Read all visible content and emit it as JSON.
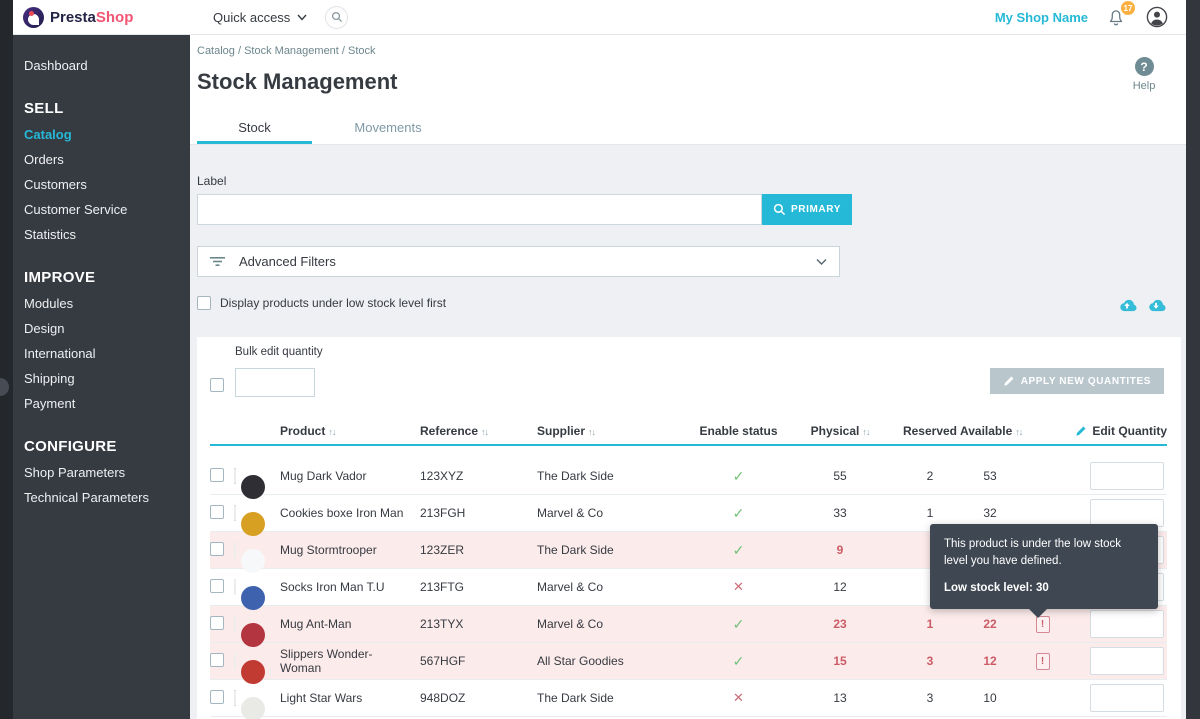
{
  "colors": {
    "accent": "#25b9d7",
    "brand_pink": "#f25474",
    "brand_navy": "#242446",
    "sidebar_bg": "#363a41",
    "success_green": "#72c279",
    "danger_red": "#cb5c66",
    "low_row_bg": "#fcebeb",
    "badge_orange": "#fbb042",
    "disabled_button_bg": "#b9c7cd",
    "tooltip_bg": "#3f4852"
  },
  "header": {
    "brand_presta": "Presta",
    "brand_shop": "Shop",
    "quick_access": "Quick access",
    "shop_name": "My Shop Name",
    "notification_count": "17"
  },
  "sidebar": {
    "dashboard": "Dashboard",
    "sections": [
      {
        "heading": "SELL",
        "items": [
          {
            "label": "Catalog",
            "active": true
          },
          {
            "label": "Orders",
            "active": false
          },
          {
            "label": "Customers",
            "active": false
          },
          {
            "label": "Customer Service",
            "active": false
          },
          {
            "label": "Statistics",
            "active": false
          }
        ]
      },
      {
        "heading": "IMPROVE",
        "items": [
          {
            "label": "Modules",
            "active": false
          },
          {
            "label": "Design",
            "active": false
          },
          {
            "label": "International",
            "active": false
          },
          {
            "label": "Shipping",
            "active": false
          },
          {
            "label": "Payment",
            "active": false
          }
        ]
      },
      {
        "heading": "CONFIGURE",
        "items": [
          {
            "label": "Shop Parameters",
            "active": false
          },
          {
            "label": "Technical Parameters",
            "active": false
          }
        ]
      }
    ]
  },
  "page": {
    "breadcrumb": "Catalog / Stock Management / Stock",
    "title": "Stock Management",
    "help_label": "Help",
    "help_glyph": "?",
    "tabs": [
      {
        "label": "Stock",
        "active": true
      },
      {
        "label": "Movements",
        "active": false
      }
    ]
  },
  "filters": {
    "label_label": "Label",
    "search_value": "",
    "search_button": "PRIMARY",
    "advanced_filters": "Advanced Filters",
    "low_stock_checkbox_label": "Display products under low stock level first"
  },
  "bulk": {
    "label": "Bulk edit quantity",
    "value": "",
    "apply_button": "APPLY NEW QUANTITES"
  },
  "table": {
    "columns": {
      "product": "Product",
      "reference": "Reference",
      "supplier": "Supplier",
      "enable_status": "Enable status",
      "physical": "Physical",
      "reserved": "Reserved",
      "available": "Available",
      "edit_quantity": "Edit Quantity"
    },
    "status_icons": {
      "enabled": "✓",
      "disabled": "✕"
    },
    "warn_glyph": "!",
    "rows": [
      {
        "product": "Mug Dark Vador",
        "reference": "123XYZ",
        "supplier": "The Dark Side",
        "enabled": true,
        "physical": "55",
        "reserved": "2",
        "available": "53",
        "low": false,
        "warn": false,
        "edit_value": "",
        "thumb": {
          "bg": "#17171a",
          "fg": "#2e2e34"
        }
      },
      {
        "product": "Cookies boxe Iron Man",
        "reference": "213FGH",
        "supplier": "Marvel & Co",
        "enabled": true,
        "physical": "33",
        "reserved": "1",
        "available": "32",
        "low": false,
        "warn": false,
        "edit_value": "",
        "thumb": {
          "bg": "#b3372e",
          "fg": "#d8a023"
        }
      },
      {
        "product": "Mug Stormtrooper",
        "reference": "123ZER",
        "supplier": "The Dark Side",
        "enabled": true,
        "physical": "9",
        "reserved": "",
        "available": "",
        "low": true,
        "warn": false,
        "edit_value": "",
        "thumb": {
          "bg": "#dcdde0",
          "fg": "#f7f8f9"
        }
      },
      {
        "product": "Socks Iron Man T.U",
        "reference": "213FTG",
        "supplier": "Marvel & Co",
        "enabled": false,
        "physical": "12",
        "reserved": "",
        "available": "",
        "low": false,
        "warn": false,
        "edit_value": "",
        "thumb": {
          "bg": "#f3f4f6",
          "fg": "#3f62ae"
        }
      },
      {
        "product": "Mug Ant-Man",
        "reference": "213TYX",
        "supplier": "Marvel & Co",
        "enabled": true,
        "physical": "23",
        "reserved": "1",
        "available": "22",
        "low": true,
        "warn": true,
        "edit_value": "",
        "thumb": {
          "bg": "#efefef",
          "fg": "#b23540"
        }
      },
      {
        "product": "Slippers Wonder-Woman",
        "reference": "567HGF",
        "supplier": "All Star Goodies",
        "enabled": true,
        "physical": "15",
        "reserved": "3",
        "available": "12",
        "low": true,
        "warn": true,
        "edit_value": "",
        "thumb": {
          "bg": "#f6f2ee",
          "fg": "#c23b33"
        }
      },
      {
        "product": "Light Star Wars",
        "reference": "948DOZ",
        "supplier": "The Dark Side",
        "enabled": false,
        "physical": "13",
        "reserved": "3",
        "available": "10",
        "low": false,
        "warn": false,
        "edit_value": "",
        "thumb": {
          "bg": "#33362c",
          "fg": "#e9eae6"
        }
      }
    ]
  },
  "tooltip": {
    "line1": "This product is under the low stock level you have defined.",
    "line2": "Low stock level: 30"
  }
}
